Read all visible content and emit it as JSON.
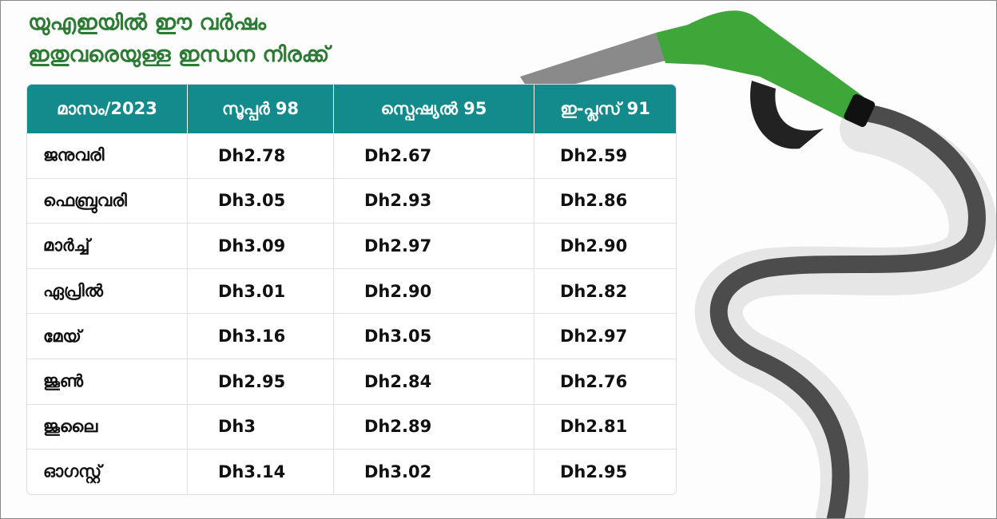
{
  "header": {
    "title_lines": [
      "യുഎഇയിൽ ഈ വർഷം",
      "ഇതുവരെയുള്ള ഇന്ധന നിരക്ക്"
    ]
  },
  "table": {
    "columns": [
      "മാസം/2023",
      "സൂപ്പർ 98",
      "സ്പെഷ്യൽ 95",
      "ഇ-പ്ലസ് 91"
    ],
    "rows": [
      [
        "ജനുവരി",
        "Dh2.78",
        "Dh2.67",
        "Dh2.59"
      ],
      [
        "ഫെബ്രുവരി",
        "Dh3.05",
        "Dh2.93",
        "Dh2.86"
      ],
      [
        "മാർച്ച്",
        "Dh3.09",
        "Dh2.97",
        "Dh2.90"
      ],
      [
        "ഏപ്രിൽ",
        "Dh3.01",
        "Dh2.90",
        "Dh2.82"
      ],
      [
        "മേയ്",
        "Dh3.16",
        "Dh3.05",
        "Dh2.97"
      ],
      [
        "ജൂൺ",
        "Dh2.95",
        "Dh2.84",
        "Dh2.76"
      ],
      [
        "ജൂലൈ",
        "Dh3",
        "Dh2.89",
        "Dh2.81"
      ],
      [
        "ഓഗസ്റ്റ്",
        "Dh3.14",
        "Dh3.02",
        "Dh2.95"
      ]
    ]
  }
}
